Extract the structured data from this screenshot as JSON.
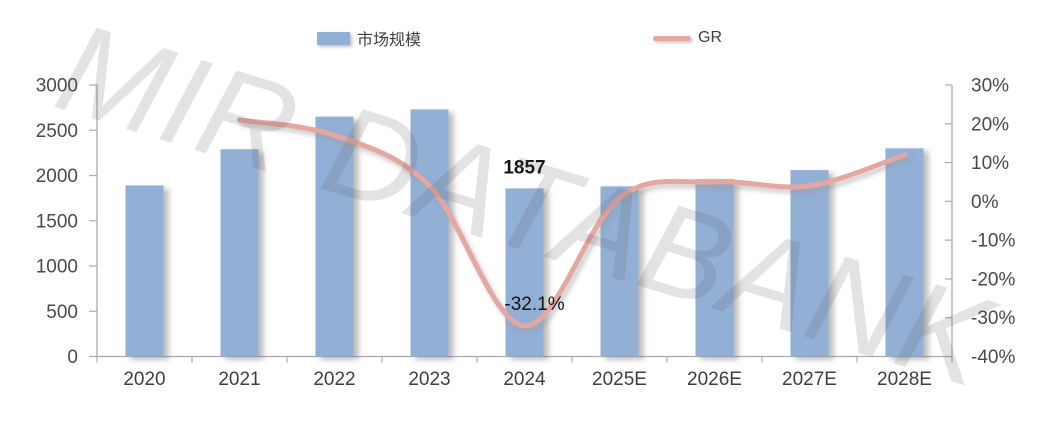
{
  "watermark": "MIR DATABANK",
  "legend": {
    "items": [
      {
        "label": "市场规模",
        "type": "bar",
        "color": "#92AFD6"
      },
      {
        "label": "GR",
        "type": "line",
        "color": "#E5A7A1"
      }
    ]
  },
  "chart_data": {
    "type": "bar+line",
    "categories": [
      "2020",
      "2021",
      "2022",
      "2023",
      "2024",
      "2025E",
      "2026E",
      "2027E",
      "2028E"
    ],
    "series": [
      {
        "name": "市场规模",
        "chart": "bar",
        "axis": "left",
        "color": "#92AFD6",
        "values": [
          1890,
          2290,
          2650,
          2730,
          1857,
          1880,
          1960,
          2060,
          2300
        ]
      },
      {
        "name": "GR",
        "chart": "line",
        "axis": "right",
        "unit": "%",
        "color": "#E5A7A1",
        "values": [
          null,
          21,
          17,
          4,
          -32.1,
          1,
          5,
          4,
          12
        ]
      }
    ],
    "left_axis": {
      "min": 0,
      "max": 3000,
      "ticks": [
        "3000",
        "2500",
        "2000",
        "1500",
        "1000",
        "500",
        "0"
      ]
    },
    "right_axis": {
      "min": -40,
      "max": 30,
      "ticks": [
        "30%",
        "20%",
        "10%",
        "0%",
        "-10%",
        "-20%",
        "-30%",
        "-40%"
      ]
    },
    "annotations": [
      {
        "text": "1857",
        "category": "2024",
        "placement": "above-bar",
        "bold": true
      },
      {
        "text": "-32.1%",
        "category": "2024",
        "placement": "at-line",
        "bold": false
      }
    ],
    "grid": "off",
    "legend_position": "top"
  }
}
